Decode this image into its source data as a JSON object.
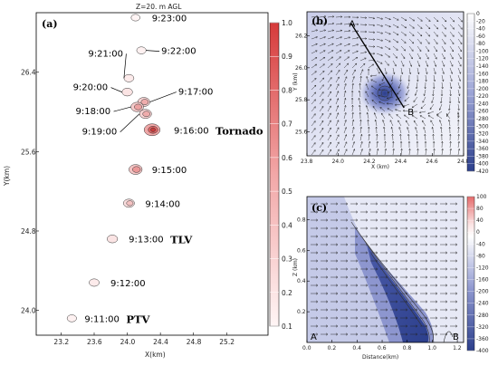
{
  "chart_data": [
    {
      "panel": "(a)",
      "type": "contour",
      "title": "Z=20. m AGL",
      "xlabel": "X(km)",
      "ylabel": "Y(km)",
      "xlim": [
        22.9,
        25.7
      ],
      "ylim": [
        23.75,
        27.0
      ],
      "xticks": [
        "23.2",
        "23.6",
        "24.0",
        "24.4",
        "24.8",
        "25.2"
      ],
      "yticks": [
        "24.0",
        "24.8",
        "25.6",
        "26.4"
      ],
      "colorbar": {
        "min": 0.1,
        "max": 1.0,
        "ticks": [
          "0.1",
          "0.2",
          "0.3",
          "0.4",
          "0.5",
          "0.6",
          "0.7",
          "0.8",
          "0.9",
          "1.0"
        ]
      },
      "features": [
        {
          "time": "9:23:00",
          "x": 24.1,
          "y": 26.95,
          "max": 0.15,
          "tag": ""
        },
        {
          "time": "9:22:00",
          "x": 24.17,
          "y": 26.62,
          "max": 0.2,
          "tag": ""
        },
        {
          "time": "9:21:00",
          "x": 24.02,
          "y": 26.34,
          "max": 0.25,
          "tag": ""
        },
        {
          "time": "9:20:00",
          "x": 24.0,
          "y": 26.2,
          "max": 0.3,
          "tag": ""
        },
        {
          "time": "9:17:00",
          "x": 24.2,
          "y": 26.1,
          "max": 0.45,
          "tag": ""
        },
        {
          "time": "9:18:00",
          "x": 24.12,
          "y": 26.05,
          "max": 0.5,
          "tag": ""
        },
        {
          "time": "9:19:00",
          "x": 24.22,
          "y": 25.98,
          "max": 0.45,
          "tag": ""
        },
        {
          "time": "9:16:00",
          "x": 24.3,
          "y": 25.82,
          "max": 0.8,
          "tag": "Tornado"
        },
        {
          "time": "9:15:00",
          "x": 24.1,
          "y": 25.42,
          "max": 0.55,
          "tag": ""
        },
        {
          "time": "9:14:00",
          "x": 24.02,
          "y": 25.08,
          "max": 0.35,
          "tag": ""
        },
        {
          "time": "9:13:00",
          "x": 23.82,
          "y": 24.72,
          "max": 0.3,
          "tag": "TLV"
        },
        {
          "time": "9:12:00",
          "x": 23.6,
          "y": 24.28,
          "max": 0.25,
          "tag": ""
        },
        {
          "time": "9:11:00",
          "x": 23.33,
          "y": 23.92,
          "max": 0.2,
          "tag": "PTV"
        }
      ]
    },
    {
      "panel": "(b)",
      "type": "vector-contour",
      "title": "",
      "xlabel": "X (km)",
      "ylabel": "Y (km)",
      "xlim": [
        23.8,
        24.8
      ],
      "ylim": [
        25.45,
        26.35
      ],
      "xticks": [
        "23.8",
        "24.0",
        "24.2",
        "24.4",
        "24.6",
        "24.8"
      ],
      "yticks": [
        "25.6",
        "25.8",
        "26.0",
        "26.2"
      ],
      "colorbar": {
        "min": -420,
        "max": 0,
        "ticks": [
          "0",
          "-20",
          "-40",
          "-60",
          "-80",
          "-100",
          "-120",
          "-140",
          "-160",
          "-180",
          "-200",
          "-220",
          "-240",
          "-260",
          "-280",
          "-300",
          "-320",
          "-340",
          "-360",
          "-380",
          "-400",
          "-420"
        ]
      },
      "section_line": {
        "A": [
          24.08,
          26.28
        ],
        "B": [
          24.42,
          25.75
        ]
      },
      "vortex_center": [
        24.22,
        25.99
      ]
    },
    {
      "panel": "(c)",
      "type": "vector-contour",
      "title": "",
      "xlabel": "Distance(km)",
      "ylabel": "Z (km)",
      "xlim": [
        0.0,
        1.25
      ],
      "ylim": [
        0.0,
        0.95
      ],
      "xticks": [
        "0.0",
        "0.2",
        "0.4",
        "0.6",
        "0.8",
        "1.0",
        "1.2"
      ],
      "yticks": [
        "0.2",
        "0.4",
        "0.6",
        "0.8"
      ],
      "colorbar": {
        "min": -400,
        "max": 100,
        "ticks": [
          "100",
          "80",
          "40",
          "0",
          "-40",
          "-80",
          "-120",
          "-160",
          "-200",
          "-240",
          "-280",
          "-320",
          "-360",
          "-400"
        ]
      },
      "endpoints": [
        "A",
        "B"
      ]
    }
  ]
}
